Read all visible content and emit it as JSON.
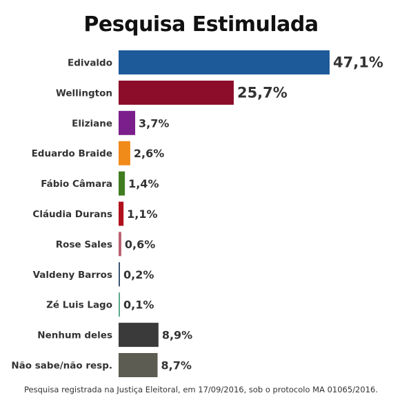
{
  "chart_data": {
    "type": "bar",
    "orientation": "horizontal",
    "title": "Pesquisa Estimulada",
    "categories": [
      "Edivaldo",
      "Wellington",
      "Eliziane",
      "Eduardo Braide",
      "Fábio Câmara",
      "Cláudia Durans",
      "Rose Sales",
      "Valdeny Barros",
      "Zé Luis Lago",
      "Nenhum deles",
      "Não sabe/não resp."
    ],
    "values": [
      47.1,
      25.7,
      3.7,
      2.6,
      1.4,
      1.1,
      0.6,
      0.2,
      0.1,
      8.9,
      8.7
    ],
    "value_labels": [
      "47,1%",
      "25,7%",
      "3,7%",
      "2,6%",
      "1,4%",
      "1,1%",
      "0,6%",
      "0,2%",
      "0,1%",
      "8,9%",
      "8,7%"
    ],
    "colors": [
      "#1d5a99",
      "#8b0d29",
      "#7a1f8c",
      "#f08a18",
      "#3f7d20",
      "#b0101c",
      "#b86070",
      "#3b5570",
      "#5aa88a",
      "#3a3a3a",
      "#5c5c52"
    ],
    "xlim": [
      0,
      47.1
    ],
    "legend": "none",
    "grid": false
  },
  "footnote": "Pesquisa registrada na Justiça Eleitoral, em 17/09/2016, sob o protocolo MA 01065/2016."
}
